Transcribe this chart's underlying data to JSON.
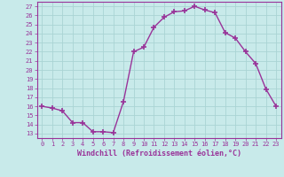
{
  "x": [
    0,
    1,
    2,
    3,
    4,
    5,
    6,
    7,
    8,
    9,
    10,
    11,
    12,
    13,
    14,
    15,
    16,
    17,
    18,
    19,
    20,
    21,
    22,
    23
  ],
  "y": [
    16.0,
    15.8,
    15.5,
    14.2,
    14.2,
    13.2,
    13.2,
    13.1,
    16.5,
    22.0,
    22.5,
    24.7,
    25.8,
    26.4,
    26.5,
    27.0,
    26.6,
    26.3,
    24.1,
    23.5,
    22.0,
    20.7,
    17.9,
    16.0
  ],
  "line_color": "#993399",
  "marker": "+",
  "marker_size": 5,
  "marker_lw": 1.2,
  "xlabel": "Windchill (Refroidissement éolien,°C)",
  "yticks": [
    13,
    14,
    15,
    16,
    17,
    18,
    19,
    20,
    21,
    22,
    23,
    24,
    25,
    26,
    27
  ],
  "xlim": [
    -0.5,
    23.5
  ],
  "ylim": [
    12.5,
    27.5
  ],
  "bg_color": "#c8eaea",
  "grid_color": "#aad4d4",
  "tick_color": "#993399",
  "label_color": "#993399",
  "font_family": "monospace",
  "tick_fontsize": 5.0,
  "xlabel_fontsize": 6.0,
  "linewidth": 1.0
}
